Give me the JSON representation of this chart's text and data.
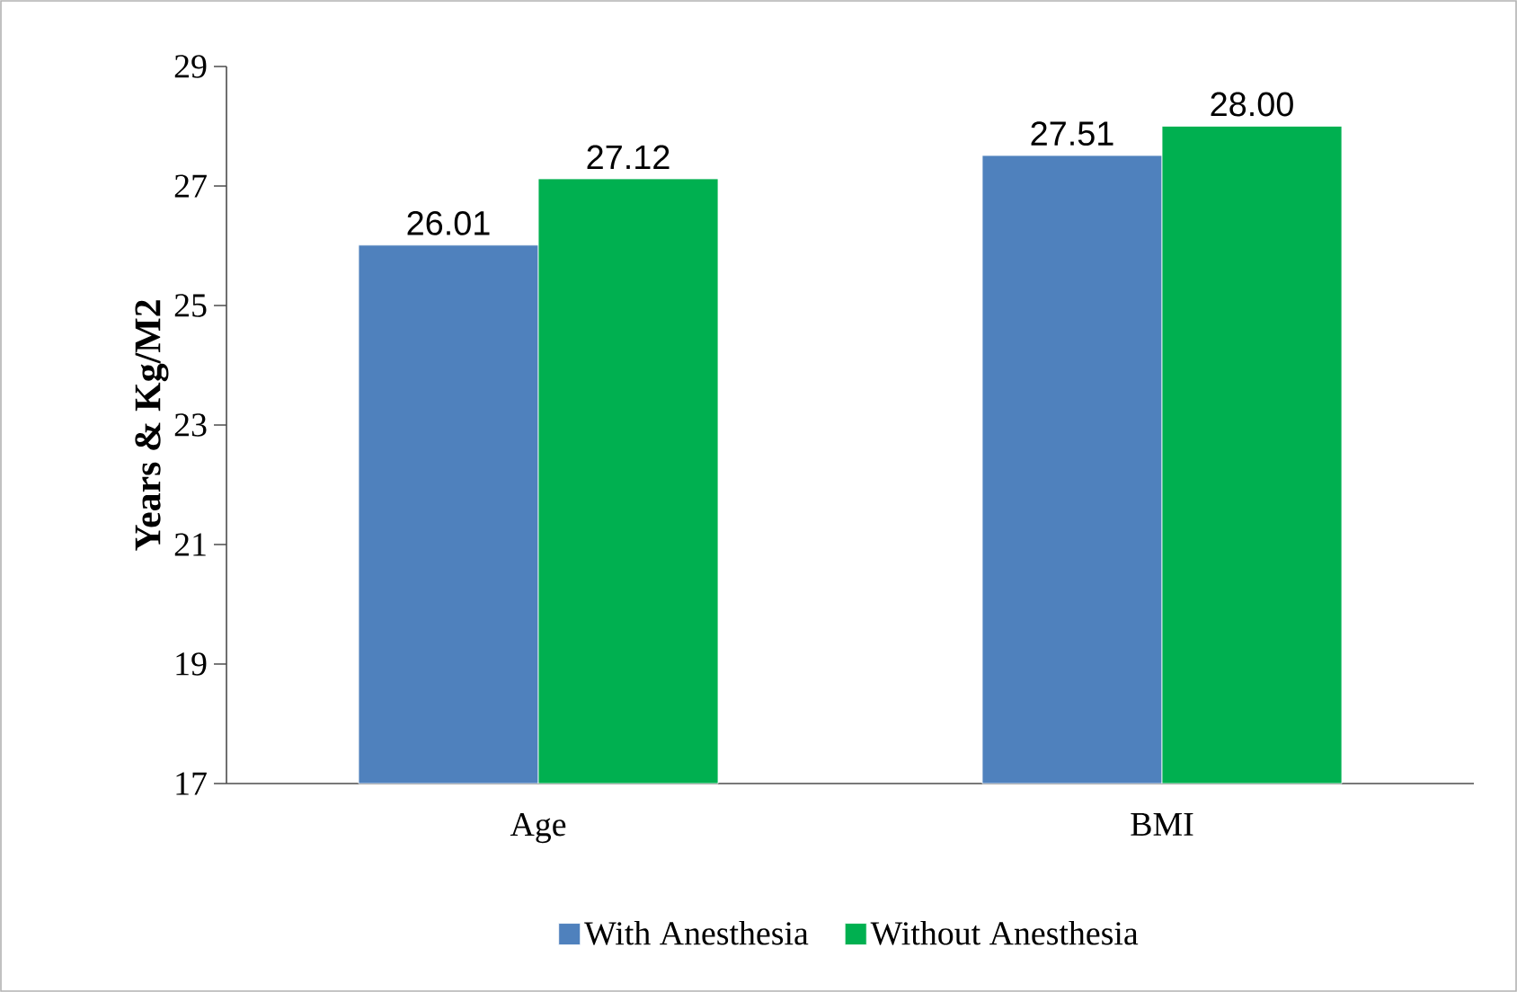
{
  "chart_data": {
    "type": "bar",
    "ylabel": "Years & Kg/M2",
    "categories": [
      "Age",
      "BMI"
    ],
    "series": [
      {
        "name": "With Anesthesia",
        "color": "#4f81bd",
        "values": [
          26.01,
          27.51
        ],
        "value_labels": [
          "26.01",
          "27.51"
        ]
      },
      {
        "name": "Without Anesthesia",
        "color": "#00b050",
        "values": [
          27.12,
          28.0
        ],
        "value_labels": [
          "27.12",
          "28.00"
        ]
      }
    ],
    "ylim": [
      17,
      29
    ],
    "yticks": [
      17,
      19,
      21,
      23,
      25,
      27,
      29
    ],
    "grid": false,
    "legend": "bottom"
  }
}
